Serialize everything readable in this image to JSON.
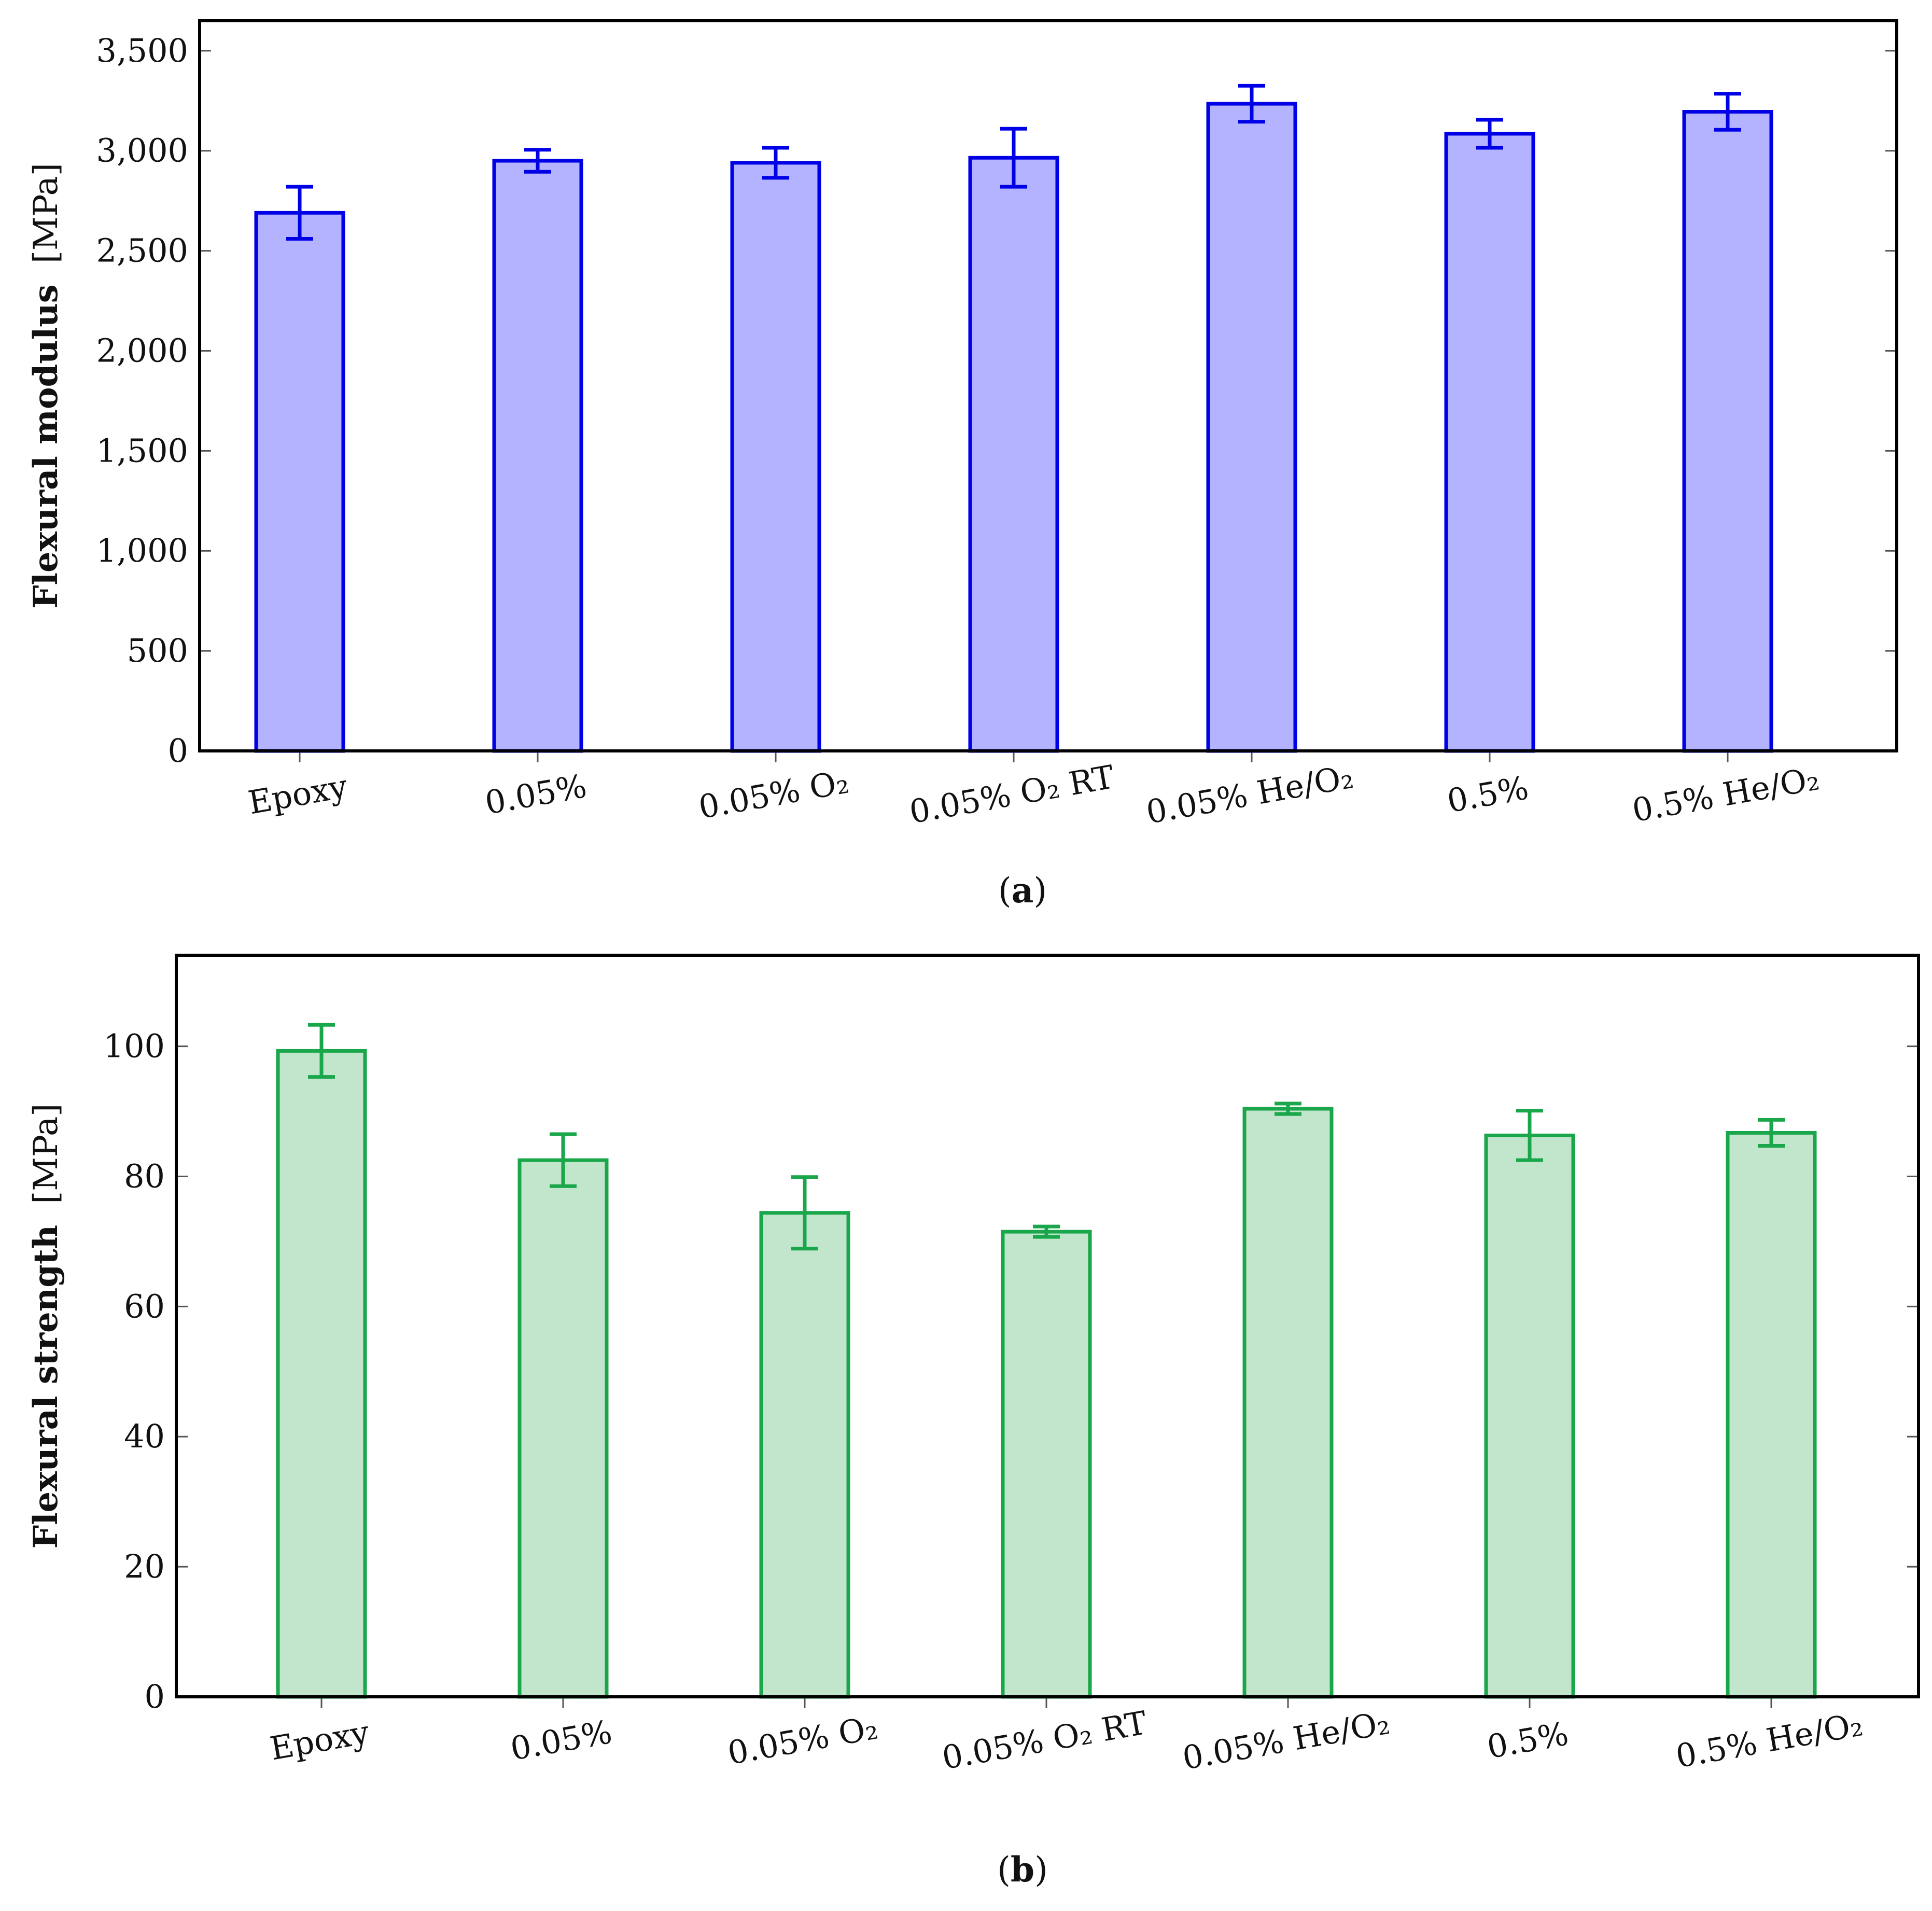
{
  "figure": {
    "panels": [
      "(a)",
      "(b)"
    ]
  },
  "chart_data": [
    {
      "type": "bar",
      "panel_label": "(a)",
      "panel_letter": "a",
      "categories": [
        "Epoxy",
        "0.05%",
        "0.05% O₂",
        "0.05% O₂ RT",
        "0.05% He/O₂",
        "0.5%",
        "0.5% He/O₂"
      ],
      "values": [
        2690,
        2950,
        2940,
        2965,
        3235,
        3085,
        3195
      ],
      "errors": [
        130,
        55,
        75,
        145,
        90,
        70,
        90
      ],
      "ylabel": "Flexural modulus",
      "yunit": "[MPa]",
      "ylim": [
        0,
        3650
      ],
      "yticks": [
        0,
        500,
        1000,
        1500,
        2000,
        2500,
        3000,
        3500
      ],
      "ytick_labels": [
        "0",
        "500",
        "1,000",
        "1,500",
        "2,000",
        "2,500",
        "3,000",
        "3,500"
      ],
      "grid": false,
      "colors": {
        "fill": "#b3b3ff",
        "stroke": "#0000e6"
      }
    },
    {
      "type": "bar",
      "panel_label": "(b)",
      "panel_letter": "b",
      "categories": [
        "Epoxy",
        "0.05%",
        "0.05% O₂",
        "0.05% O₂ RT",
        "0.05% He/O₂",
        "0.5%",
        "0.5% He/O₂"
      ],
      "values": [
        99.3,
        82.5,
        74.4,
        71.5,
        90.4,
        86.3,
        86.7
      ],
      "errors": [
        4.0,
        4.0,
        5.5,
        0.8,
        0.8,
        3.8,
        2.0
      ],
      "ylabel": "Flexural strength",
      "yunit": "[MPa]",
      "ylim": [
        0,
        114
      ],
      "yticks": [
        0,
        20,
        40,
        60,
        80,
        100
      ],
      "ytick_labels": [
        "0",
        "20",
        "40",
        "60",
        "80",
        "100"
      ],
      "grid": false,
      "colors": {
        "fill": "#c2e6cc",
        "stroke": "#1aa64a"
      }
    }
  ]
}
